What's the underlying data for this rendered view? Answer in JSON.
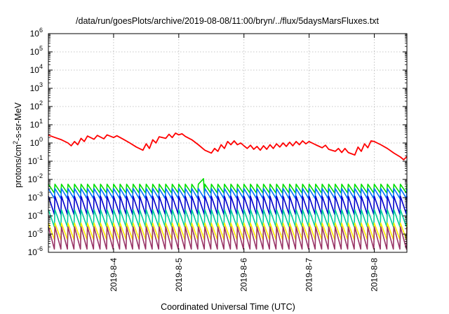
{
  "chart_data": {
    "type": "line",
    "title": "/data/run/goesPlots/archive/2019-08-08/11:00/bryn/../flux/5daysMarsFluxes.txt",
    "xlabel": "Coordinated Universal Time (UTC)",
    "ylabel": "protons/cm²-s-sr-MeV",
    "ylabel_parts": {
      "main": "protons/cm",
      "sup": "2",
      "rest": "-s-sr-MeV"
    },
    "x_range_days": [
      3.0,
      8.5
    ],
    "x_ticks": [
      {
        "label": "2019-8-4",
        "day": 4
      },
      {
        "label": "2019-8-5",
        "day": 5
      },
      {
        "label": "2019-8-6",
        "day": 6
      },
      {
        "label": "2019-8-7",
        "day": 7
      },
      {
        "label": "2019-8-8",
        "day": 8
      }
    ],
    "y_scale": "log",
    "y_range": [
      1e-06,
      1000000.0
    ],
    "y_ticks": [
      {
        "base": "10",
        "exp": "-6",
        "value": 1e-06
      },
      {
        "base": "10",
        "exp": "-5",
        "value": 1e-05
      },
      {
        "base": "10",
        "exp": "-4",
        "value": 0.0001
      },
      {
        "base": "10",
        "exp": "-3",
        "value": 0.001
      },
      {
        "base": "10",
        "exp": "-2",
        "value": 0.01
      },
      {
        "base": "10",
        "exp": "-1",
        "value": 0.1
      },
      {
        "base": "10",
        "exp": "0",
        "value": 1
      },
      {
        "base": "10",
        "exp": "1",
        "value": 10
      },
      {
        "base": "10",
        "exp": "2",
        "value": 100
      },
      {
        "base": "10",
        "exp": "3",
        "value": 1000
      },
      {
        "base": "10",
        "exp": "4",
        "value": 10000
      },
      {
        "base": "10",
        "exp": "5",
        "value": 100000
      },
      {
        "base": "10",
        "exp": "6",
        "value": 1000000
      }
    ],
    "grid": true,
    "legend": "none",
    "series": [
      {
        "color": "#ff0000",
        "points": [
          [
            3.0,
            2.7
          ],
          [
            3.1,
            2.0
          ],
          [
            3.2,
            1.5
          ],
          [
            3.3,
            1.0
          ],
          [
            3.35,
            0.7
          ],
          [
            3.4,
            1.2
          ],
          [
            3.45,
            0.8
          ],
          [
            3.5,
            1.8
          ],
          [
            3.55,
            1.2
          ],
          [
            3.6,
            2.4
          ],
          [
            3.7,
            1.6
          ],
          [
            3.75,
            2.6
          ],
          [
            3.85,
            1.7
          ],
          [
            3.9,
            2.8
          ],
          [
            4.0,
            2.0
          ],
          [
            4.05,
            2.5
          ],
          [
            4.15,
            1.6
          ],
          [
            4.25,
            1.0
          ],
          [
            4.35,
            0.6
          ],
          [
            4.45,
            0.4
          ],
          [
            4.5,
            0.9
          ],
          [
            4.55,
            0.5
          ],
          [
            4.6,
            1.5
          ],
          [
            4.65,
            1.0
          ],
          [
            4.7,
            2.2
          ],
          [
            4.8,
            1.8
          ],
          [
            4.85,
            3.0
          ],
          [
            4.9,
            2.0
          ],
          [
            4.95,
            3.5
          ],
          [
            5.0,
            2.8
          ],
          [
            5.05,
            3.2
          ],
          [
            5.1,
            2.3
          ],
          [
            5.2,
            1.5
          ],
          [
            5.3,
            0.8
          ],
          [
            5.4,
            0.4
          ],
          [
            5.5,
            0.28
          ],
          [
            5.55,
            0.5
          ],
          [
            5.6,
            0.35
          ],
          [
            5.65,
            0.8
          ],
          [
            5.7,
            0.5
          ],
          [
            5.75,
            1.2
          ],
          [
            5.8,
            0.8
          ],
          [
            5.85,
            1.3
          ],
          [
            5.9,
            0.8
          ],
          [
            5.95,
            1.0
          ],
          [
            6.0,
            0.7
          ],
          [
            6.05,
            0.5
          ],
          [
            6.1,
            0.75
          ],
          [
            6.15,
            0.45
          ],
          [
            6.2,
            0.65
          ],
          [
            6.25,
            0.4
          ],
          [
            6.3,
            0.7
          ],
          [
            6.35,
            0.45
          ],
          [
            6.4,
            0.8
          ],
          [
            6.45,
            0.5
          ],
          [
            6.5,
            0.9
          ],
          [
            6.55,
            0.6
          ],
          [
            6.6,
            1.0
          ],
          [
            6.65,
            0.65
          ],
          [
            6.7,
            1.1
          ],
          [
            6.75,
            0.7
          ],
          [
            6.8,
            1.2
          ],
          [
            6.85,
            0.8
          ],
          [
            6.9,
            1.3
          ],
          [
            6.95,
            0.9
          ],
          [
            7.0,
            1.2
          ],
          [
            7.1,
            0.8
          ],
          [
            7.2,
            0.55
          ],
          [
            7.25,
            0.75
          ],
          [
            7.3,
            0.45
          ],
          [
            7.4,
            0.35
          ],
          [
            7.45,
            0.5
          ],
          [
            7.5,
            0.3
          ],
          [
            7.55,
            0.5
          ],
          [
            7.6,
            0.3
          ],
          [
            7.7,
            0.22
          ],
          [
            7.75,
            0.6
          ],
          [
            7.8,
            0.35
          ],
          [
            7.85,
            0.9
          ],
          [
            7.9,
            0.55
          ],
          [
            7.95,
            1.3
          ],
          [
            8.0,
            1.2
          ],
          [
            8.1,
            0.8
          ],
          [
            8.2,
            0.5
          ],
          [
            8.3,
            0.28
          ],
          [
            8.4,
            0.17
          ],
          [
            8.45,
            0.12
          ],
          [
            8.5,
            0.18
          ]
        ]
      },
      {
        "color": "#00dd00",
        "sawtooth": {
          "start": 3.0,
          "end": 8.5,
          "period": 0.1,
          "hi": 0.0055,
          "lo": 0.0018,
          "bump": {
            "at": 5.38,
            "value": 0.011
          }
        }
      },
      {
        "color": "#0070ff",
        "sawtooth": {
          "start": 3.0,
          "end": 8.5,
          "period": 0.1,
          "hi": 0.0032,
          "lo": 0.0009
        }
      },
      {
        "color": "#0000cc",
        "sawtooth": {
          "start": 3.0,
          "end": 8.5,
          "period": 0.1,
          "hi": 0.0012,
          "lo": 0.00012
        }
      },
      {
        "color": "#00cc99",
        "sawtooth": {
          "start": 3.0,
          "end": 8.5,
          "period": 0.1,
          "hi": 0.00022,
          "lo": 2.5e-05
        }
      },
      {
        "color": "#ffee00",
        "sawtooth": {
          "start": 3.0,
          "end": 8.5,
          "period": 0.1,
          "hi": 4e-05,
          "lo": 5e-06
        }
      },
      {
        "color": "#993366",
        "sawtooth": {
          "start": 3.0,
          "end": 8.5,
          "period": 0.1,
          "hi": 2.5e-05,
          "lo": 1.5e-06
        }
      }
    ]
  }
}
